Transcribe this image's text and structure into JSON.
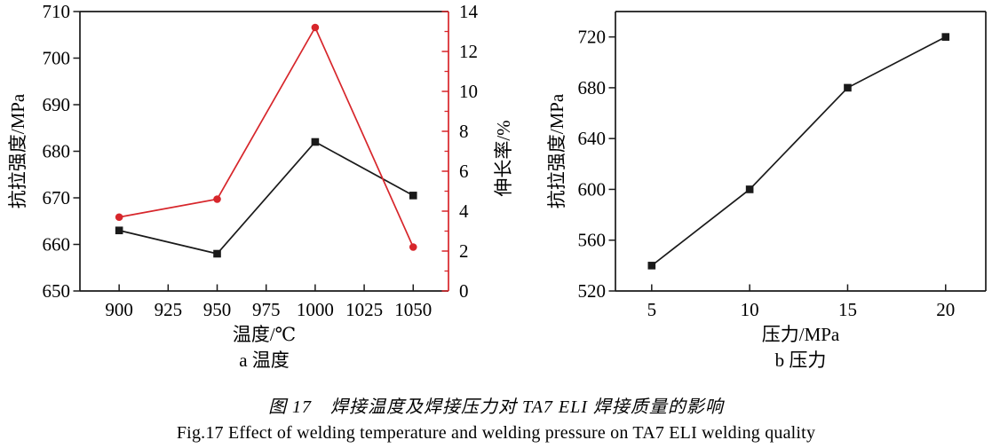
{
  "figure": {
    "caption_zh": "图 17　焊接温度及焊接压力对 TA7 ELI 焊接质量的影响",
    "caption_en": "Fig.17 Effect of welding temperature and welding pressure on TA7 ELI welding quality"
  },
  "colors": {
    "black_series": "#1a1a1a",
    "red_series": "#d7262b",
    "text": "#000000"
  },
  "chart_data": [
    {
      "id": "a-temperature",
      "type": "line",
      "title": "a 温度",
      "xlabel": "温度/℃",
      "x": [
        900,
        950,
        1000,
        1050
      ],
      "xlim": [
        880,
        1068
      ],
      "xticks": [
        900,
        925,
        950,
        975,
        1000,
        1025,
        1050
      ],
      "axes": {
        "left": {
          "label": "抗拉强度/MPa",
          "lim": [
            650,
            710
          ],
          "ticks": [
            650,
            660,
            670,
            680,
            690,
            700,
            710
          ],
          "color": "#1a1a1a"
        },
        "right": {
          "label": "伸长率/%",
          "lim": [
            0,
            14
          ],
          "ticks": [
            0,
            2,
            4,
            6,
            8,
            10,
            12,
            14
          ],
          "minor_step": 1,
          "color": "#d7262b"
        }
      },
      "series": [
        {
          "name": "tensile-strength",
          "axis": "left",
          "marker": "square",
          "color": "#1a1a1a",
          "values": [
            663,
            658,
            682,
            670.5
          ]
        },
        {
          "name": "elongation",
          "axis": "right",
          "marker": "circle",
          "color": "#d7262b",
          "values": [
            3.7,
            4.6,
            13.2,
            2.2
          ]
        }
      ]
    },
    {
      "id": "b-pressure",
      "type": "line",
      "title": "b 压力",
      "xlabel": "压力/MPa",
      "x": [
        5,
        10,
        15,
        20
      ],
      "xlim": [
        3.15,
        22.05
      ],
      "xticks": [
        5,
        10,
        15,
        20
      ],
      "axes": {
        "left": {
          "label": "抗拉强度/MPa",
          "lim": [
            520,
            740
          ],
          "ticks": [
            520,
            560,
            600,
            640,
            680,
            720
          ],
          "color": "#1a1a1a"
        }
      },
      "series": [
        {
          "name": "tensile-strength",
          "axis": "left",
          "marker": "square",
          "color": "#1a1a1a",
          "values": [
            540,
            600,
            680,
            720
          ]
        }
      ]
    }
  ]
}
